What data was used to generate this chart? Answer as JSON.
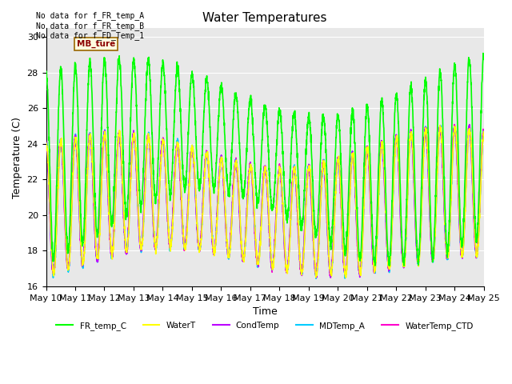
{
  "title": "Water Temperatures",
  "xlabel": "Time",
  "ylabel": "Temperature (C)",
  "ylim": [
    16,
    30.5
  ],
  "background_color": "#ffffff",
  "plot_bg_color": "#e8e8e8",
  "grid_color": "#ffffff",
  "annotations": [
    "No data for f_FR_temp_A",
    "No data for f_FR_temp_B",
    "No data for f_FD_Temp_1"
  ],
  "legend_box_text": "MB_ture",
  "series": {
    "FR_temp_C": {
      "color": "#00ff00",
      "lw": 1.2
    },
    "WaterT": {
      "color": "#ffff00",
      "lw": 1.2
    },
    "CondTemp": {
      "color": "#bb00ff",
      "lw": 1.2
    },
    "MDTemp_A": {
      "color": "#00ccff",
      "lw": 1.2
    },
    "WaterTemp_CTD": {
      "color": "#ff00cc",
      "lw": 1.2
    }
  },
  "tick_dates": [
    "May 10",
    "May 11",
    "May 12",
    "May 13",
    "May 14",
    "May 15",
    "May 16",
    "May 17",
    "May 18",
    "May 19",
    "May 20",
    "May 21",
    "May 22",
    "May 23",
    "May 24",
    "May 25"
  ],
  "yticks": [
    16,
    18,
    20,
    22,
    24,
    26,
    28,
    30
  ]
}
